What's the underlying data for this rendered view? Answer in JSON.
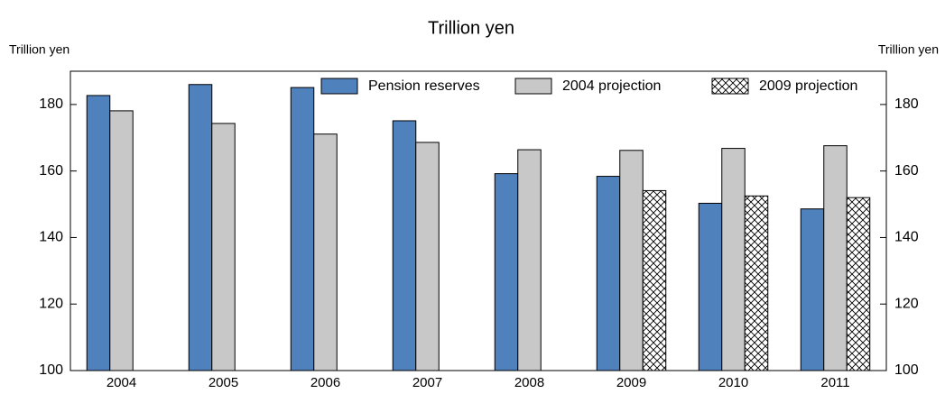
{
  "chart_data": {
    "type": "bar",
    "title": "Trillion yen",
    "ylabel": "Trillion yen",
    "y2label": "Trillion yen",
    "categories": [
      "2004",
      "2005",
      "2006",
      "2007",
      "2008",
      "2009",
      "2010",
      "2011"
    ],
    "series": [
      {
        "name": "Pension reserves",
        "color": "#4f81bd",
        "values": [
          182.7,
          186.0,
          185.1,
          175.1,
          159.2,
          158.4,
          150.3,
          148.6
        ]
      },
      {
        "name": "2004 projection",
        "color": "#c8c8c8",
        "values": [
          178.1,
          174.3,
          171.1,
          168.6,
          166.4,
          166.2,
          166.8,
          167.6
        ]
      },
      {
        "name": "2009 projection",
        "color": "#ffffff",
        "hatch": true,
        "values": [
          null,
          null,
          null,
          null,
          null,
          154.1,
          152.5,
          152.0
        ]
      }
    ],
    "ylim": [
      100,
      190
    ],
    "yticks": [
      100,
      120,
      140,
      160,
      180
    ],
    "y2lim": [
      100,
      190
    ],
    "y2ticks": [
      100,
      120,
      140,
      160,
      180
    ],
    "legend": "top"
  }
}
